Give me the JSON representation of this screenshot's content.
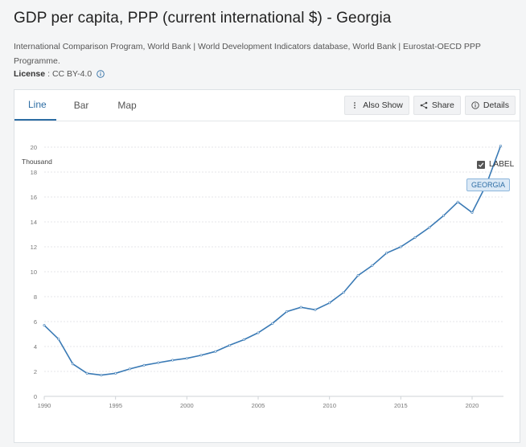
{
  "header": {
    "title": "GDP per capita, PPP (current international $) - Georgia",
    "source": "International Comparison Program, World Bank | World Development Indicators database, World Bank | Eurostat-OECD PPP Programme.",
    "license_label": "License",
    "license_value": ": CC BY-4.0"
  },
  "tabs": [
    {
      "label": "Line",
      "active": true
    },
    {
      "label": "Bar",
      "active": false
    },
    {
      "label": "Map",
      "active": false
    }
  ],
  "toolbar": {
    "also_show_label": "Also Show",
    "share_label": "Share",
    "details_label": "Details"
  },
  "legend": {
    "label_toggle": "LABEL",
    "series_tag": "GEORGIA"
  },
  "colors": {
    "accent": "#2d6da4",
    "line": "#3a7ab5"
  },
  "chart_data": {
    "type": "line",
    "ylabel": "Thousand",
    "xlabel": "",
    "ylim": [
      0,
      20
    ],
    "yticks": [
      0,
      2,
      4,
      6,
      8,
      10,
      12,
      14,
      16,
      18,
      20
    ],
    "xticks": [
      1990,
      1995,
      2000,
      2005,
      2010,
      2015,
      2020
    ],
    "grid": true,
    "series": [
      {
        "name": "GEORGIA",
        "x": [
          1990,
          1991,
          1992,
          1993,
          1994,
          1995,
          1996,
          1997,
          1998,
          1999,
          2000,
          2001,
          2002,
          2003,
          2004,
          2005,
          2006,
          2007,
          2008,
          2009,
          2010,
          2011,
          2012,
          2013,
          2014,
          2015,
          2016,
          2017,
          2018,
          2019,
          2020,
          2021,
          2022
        ],
        "values": [
          5.7,
          4.6,
          2.6,
          1.85,
          1.7,
          1.85,
          2.2,
          2.5,
          2.7,
          2.9,
          3.05,
          3.3,
          3.6,
          4.1,
          4.55,
          5.1,
          5.85,
          6.8,
          7.15,
          6.95,
          7.5,
          8.35,
          9.7,
          10.5,
          11.5,
          12.0,
          12.75,
          13.55,
          14.5,
          15.6,
          14.75,
          17.0,
          20.1
        ]
      }
    ]
  }
}
